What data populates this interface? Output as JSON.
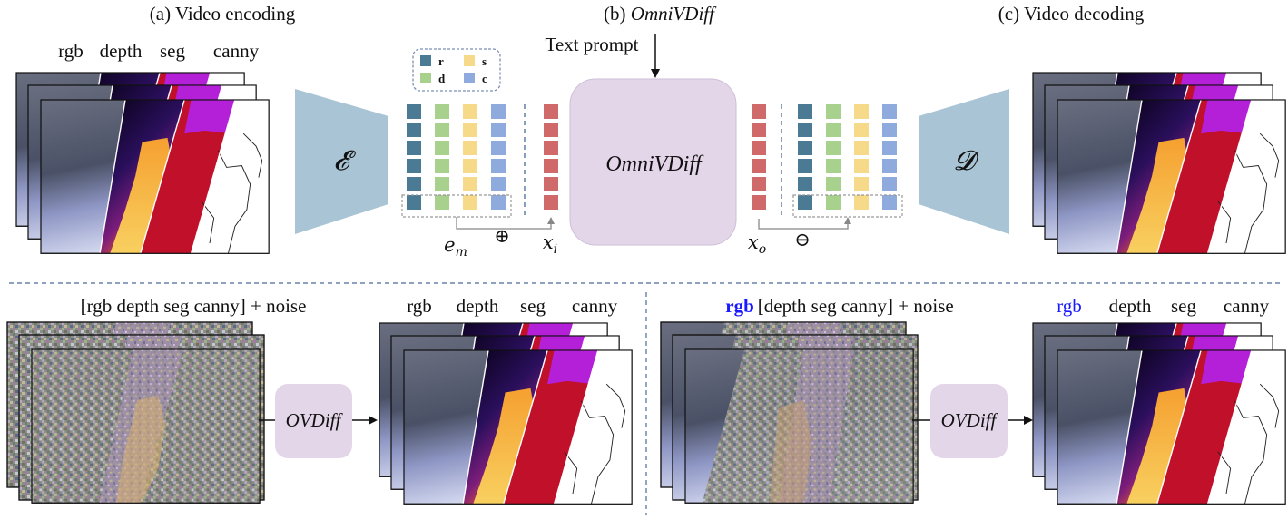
{
  "titles": {
    "encoding": "(a) Video encoding",
    "model_prefix": "(b) ",
    "model_name": "OmniVDiff",
    "decoding": "(c) Video decoding"
  },
  "text_prompt": "Text prompt",
  "center_block_label": "OmniVDiff",
  "encoder_symbol": "𝓔",
  "decoder_symbol": "𝓓",
  "legend": {
    "items": [
      {
        "key": "r",
        "color": "#4a7a94"
      },
      {
        "key": "s",
        "color": "#f7d98a"
      },
      {
        "key": "d",
        "color": "#a9d18e"
      },
      {
        "key": "c",
        "color": "#8faadc"
      }
    ]
  },
  "token_colors": {
    "rgb": "#4a7a94",
    "depth": "#a9d18e",
    "seg": "#f7d98a",
    "canny": "#8faadc",
    "latent": "#d06a6a"
  },
  "math": {
    "em": "e",
    "em_sub": "m",
    "oplus": "⊕",
    "xi": "x",
    "xi_sub": "i",
    "xo": "x",
    "xo_sub": "o",
    "ominus": "⊖"
  },
  "modalities": {
    "rgb": "rgb",
    "depth": "depth",
    "seg": "seg",
    "canny": "canny"
  },
  "bottom_left": {
    "input_label": "[rgb  depth  seg     canny] + noise",
    "model_label": "OVDiff"
  },
  "bottom_right": {
    "cond_rgb": "rgb",
    "input_rest": "[depth    seg  canny] + noise",
    "model_label": "OVDiff"
  },
  "colors": {
    "block_fill": "#e3d6e9",
    "trapezoid_fill": "#a9c4d4",
    "divider": "#4a6b9a",
    "blue_highlight": "#1a1aff"
  }
}
